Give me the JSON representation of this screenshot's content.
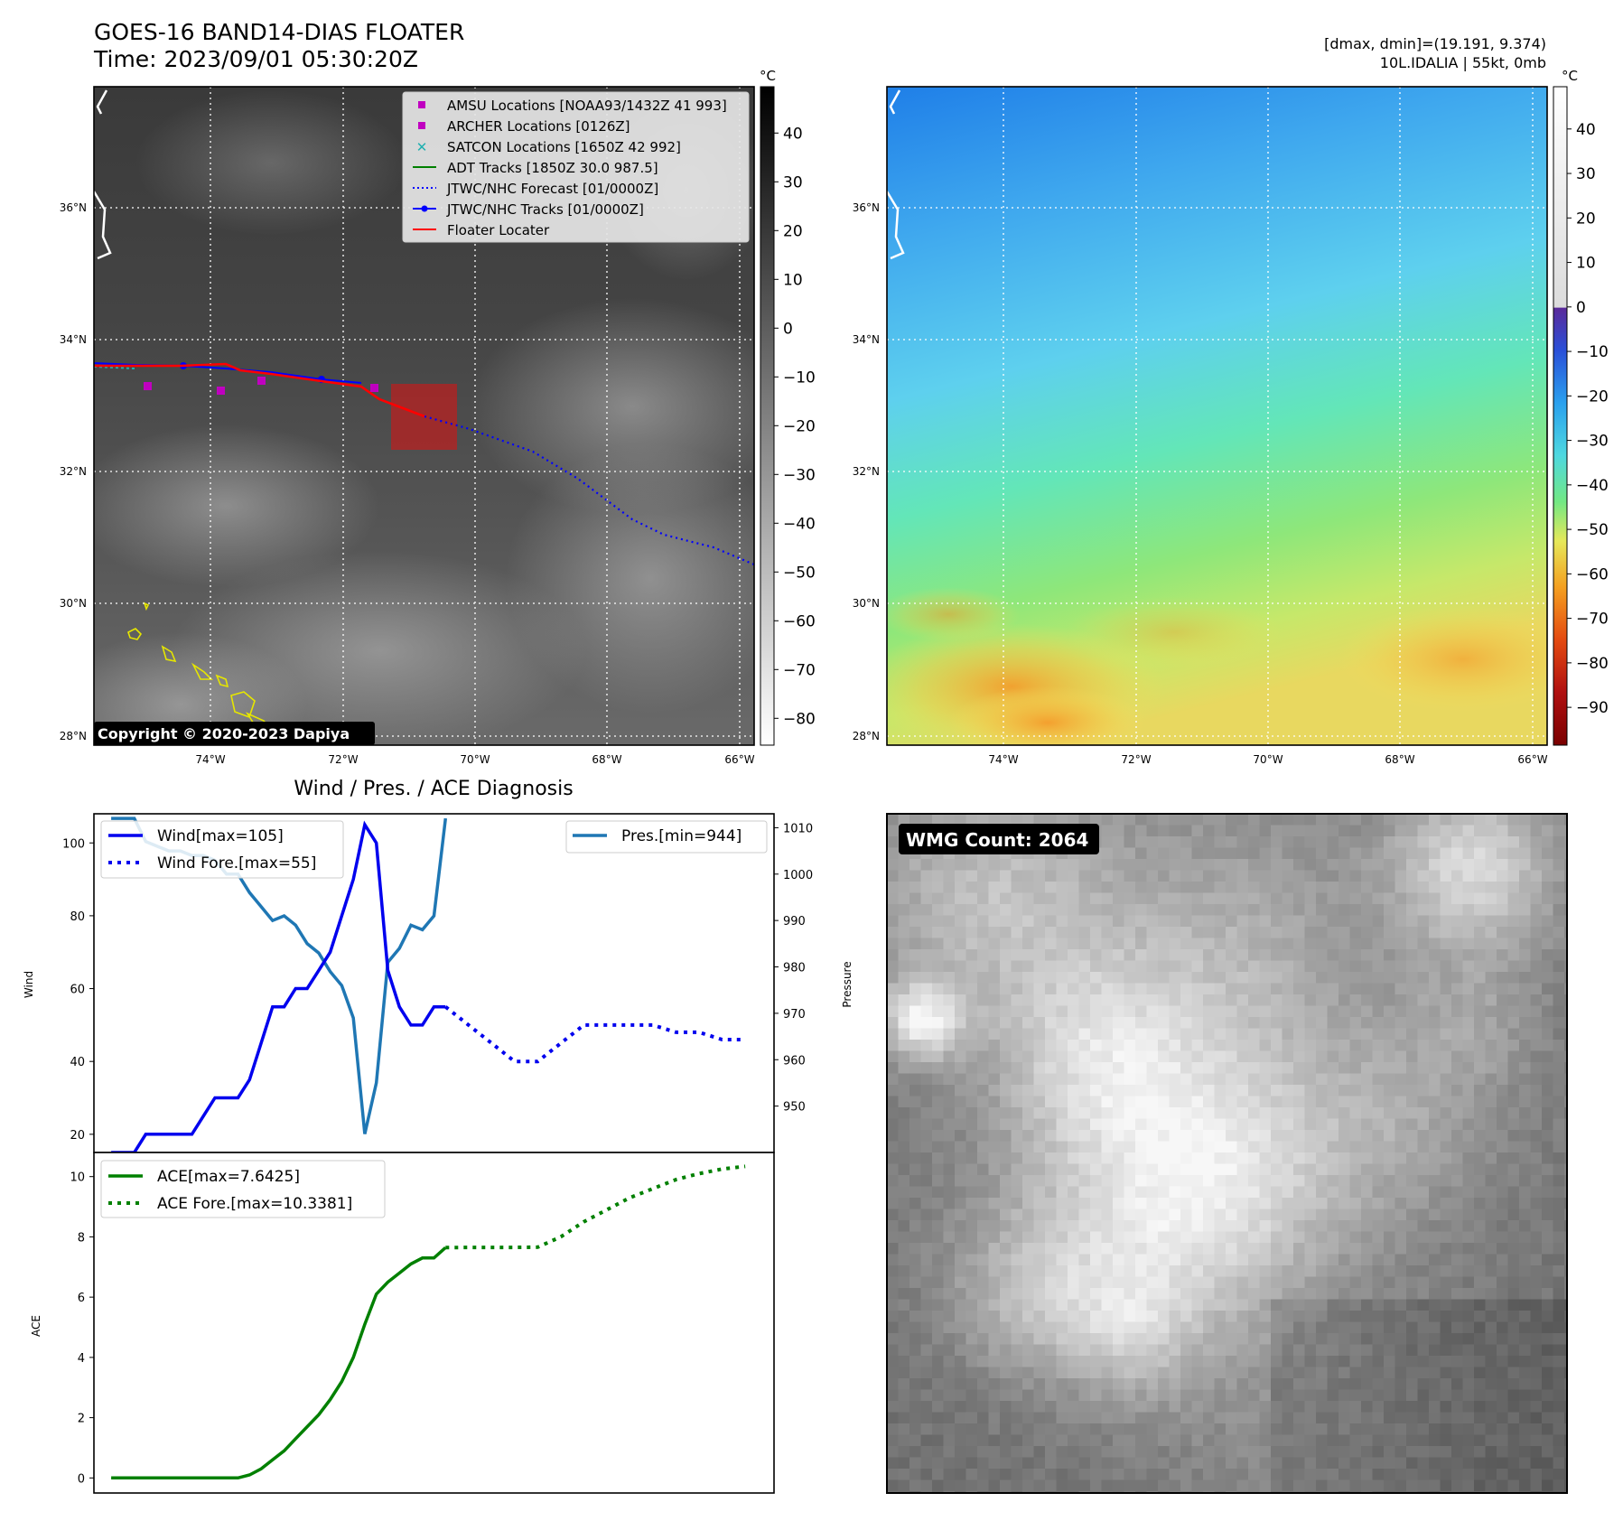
{
  "header": {
    "title_line1": "GOES-16 BAND14-DIAS FLOATER",
    "title_line2": "Time: 2023/09/01 05:30:20Z",
    "right_line1": "[dmax, dmin]=(19.191, 9.374)",
    "right_line2": "10L.IDALIA | 55kt, 0mb"
  },
  "map_axes": {
    "lat_ticks": [
      "36°N",
      "34°N",
      "32°N",
      "30°N",
      "28°N"
    ],
    "lon_ticks": [
      "74°W",
      "72°W",
      "70°W",
      "68°W",
      "66°W"
    ],
    "copyright": "Copyright © 2020-2023 Dapiya"
  },
  "legend": {
    "items": [
      {
        "label": "AMSU Locations [NOAA93/1432Z 41 993]",
        "marker": "square",
        "color": "#c000c0"
      },
      {
        "label": "ARCHER Locations [0126Z]",
        "marker": "square",
        "color": "#c000c0"
      },
      {
        "label": "SATCON Locations [1650Z 42 992]",
        "marker": "x",
        "color": "#20b0b0"
      },
      {
        "label": "ADT Tracks [1850Z 30.0 987.5]",
        "marker": "line",
        "color": "#008000"
      },
      {
        "label": "JTWC/NHC Forecast [01/0000Z]",
        "marker": "dotted",
        "color": "#0000ff"
      },
      {
        "label": "JTWC/NHC Tracks [01/0000Z]",
        "marker": "line-dot",
        "color": "#0000ff"
      },
      {
        "label": "Floater Locater",
        "marker": "line",
        "color": "#ff0000"
      }
    ]
  },
  "colorbar_gray": {
    "unit": "°C",
    "ticks": [
      "40",
      "30",
      "20",
      "10",
      "0",
      "−10",
      "−20",
      "−30",
      "−40",
      "−50",
      "−60",
      "−70",
      "−80"
    ]
  },
  "colorbar_color": {
    "unit": "°C",
    "ticks": [
      "40",
      "30",
      "20",
      "10",
      "0",
      "−10",
      "−20",
      "−30",
      "−40",
      "−50",
      "−60",
      "−70",
      "−80",
      "−90"
    ]
  },
  "diag_panel": {
    "title": "Wind / Pres. / ACE Diagnosis",
    "wind_ylabel": "Wind",
    "pres_ylabel": "Pressure",
    "ace_ylabel": "ACE",
    "wind_ticks": [
      "100",
      "80",
      "60",
      "40",
      "20"
    ],
    "pres_ticks": [
      "1010",
      "1000",
      "990",
      "980",
      "970",
      "960",
      "950"
    ],
    "ace_ticks": [
      "10",
      "8",
      "6",
      "4",
      "2",
      "0"
    ],
    "legend_wind": "Wind[max=105]",
    "legend_wind_fore": "Wind Fore.[max=55]",
    "legend_pres": "Pres.[min=944]",
    "legend_ace": "ACE[max=7.6425]",
    "legend_ace_fore": "ACE Fore.[max=10.3381]"
  },
  "wmg": {
    "label": "WMG Count: 2064"
  },
  "colors": {
    "wind": "#0000ee",
    "pressure": "#1f77b4",
    "ace": "#008000",
    "floater": "#ff0000"
  },
  "chart_data": [
    {
      "type": "line",
      "name": "Wind",
      "ylim": [
        15,
        108
      ],
      "x": [
        0,
        1,
        2,
        3,
        4,
        5,
        6,
        7,
        8,
        9,
        10,
        11,
        12,
        13,
        14,
        15,
        16,
        17,
        18,
        19,
        20,
        21,
        22,
        23,
        24,
        25,
        26,
        27,
        28,
        29,
        30,
        31
      ],
      "values": [
        15,
        15,
        15,
        20,
        20,
        20,
        20,
        20,
        25,
        30,
        30,
        30,
        35,
        45,
        55,
        55,
        60,
        60,
        65,
        70,
        80,
        90,
        105,
        100,
        65,
        55,
        50,
        50,
        55,
        55,
        null,
        null
      ],
      "forecast_x": [
        29,
        31,
        33,
        35,
        37,
        39,
        41,
        43,
        45,
        47,
        49,
        51,
        53,
        55
      ],
      "forecast_values": [
        55,
        50,
        45,
        40,
        40,
        45,
        50,
        50,
        50,
        50,
        48,
        48,
        46,
        46
      ]
    },
    {
      "type": "line",
      "name": "Pressure",
      "ylim": [
        940,
        1013
      ],
      "x": [
        0,
        1,
        2,
        3,
        4,
        5,
        6,
        7,
        8,
        9,
        10,
        11,
        12,
        13,
        14,
        15,
        16,
        17,
        18,
        19,
        20,
        21,
        22,
        23,
        24,
        25,
        26,
        27,
        28,
        29
      ],
      "values": [
        1012,
        1012,
        1012,
        1007,
        1006,
        1005,
        1005,
        1004,
        1004,
        1003,
        1000,
        1000,
        996,
        993,
        990,
        991,
        989,
        985,
        983,
        979,
        976,
        969,
        944,
        955,
        981,
        984,
        989,
        988,
        991,
        1012
      ]
    },
    {
      "type": "line",
      "name": "ACE",
      "ylim": [
        -0.5,
        10.8
      ],
      "x": [
        0,
        1,
        2,
        3,
        4,
        5,
        6,
        7,
        8,
        9,
        10,
        11,
        12,
        13,
        14,
        15,
        16,
        17,
        18,
        19,
        20,
        21,
        22,
        23,
        24,
        25,
        26,
        27,
        28,
        29
      ],
      "values": [
        0,
        0,
        0,
        0,
        0,
        0,
        0,
        0,
        0,
        0,
        0,
        0,
        0.1,
        0.3,
        0.6,
        0.9,
        1.3,
        1.7,
        2.1,
        2.6,
        3.2,
        4.0,
        5.1,
        6.1,
        6.5,
        6.8,
        7.1,
        7.3,
        7.3,
        7.6425
      ],
      "forecast_x": [
        29,
        31,
        33,
        35,
        37,
        39,
        41,
        43,
        45,
        47,
        49,
        51,
        53,
        55
      ],
      "forecast_values": [
        7.6425,
        7.65,
        7.65,
        7.65,
        7.66,
        8.0,
        8.5,
        8.9,
        9.3,
        9.6,
        9.9,
        10.1,
        10.25,
        10.3381
      ]
    }
  ]
}
